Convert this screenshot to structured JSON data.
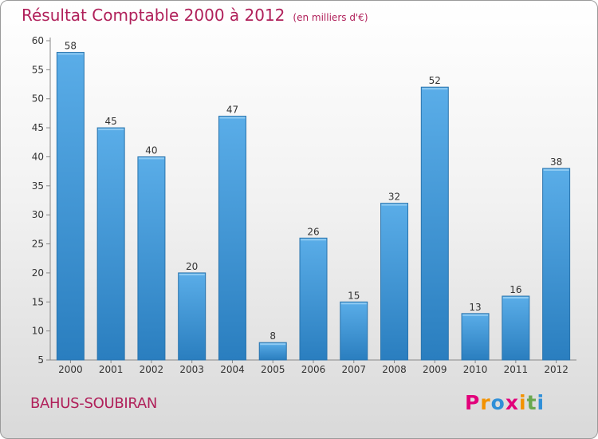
{
  "title": "Résultat Comptable 2000 à 2012",
  "subtitle": "(en milliers d'€)",
  "commune": "BAHUS-SOUBIRAN",
  "logo": {
    "letters": [
      "P",
      "r",
      "o",
      "x",
      "i",
      "t",
      "i"
    ],
    "colors": [
      "#e2007a",
      "#f39200",
      "#2f8fd8",
      "#e2007a",
      "#f39200",
      "#6aa84f",
      "#2f8fd8"
    ]
  },
  "colors": {
    "bar_light": "#5aade8",
    "bar_dark": "#2a7ebf",
    "title": "#b0205a"
  },
  "chart_data": {
    "type": "bar",
    "categories": [
      "2000",
      "2001",
      "2002",
      "2003",
      "2004",
      "2005",
      "2006",
      "2007",
      "2008",
      "2009",
      "2010",
      "2011",
      "2012"
    ],
    "values": [
      58,
      45,
      40,
      20,
      47,
      8,
      26,
      15,
      32,
      52,
      13,
      16,
      38
    ],
    "value_labels": [
      "58",
      "45",
      "40",
      "20",
      "47",
      "8",
      "26",
      "15",
      "32",
      "52",
      "13",
      "16",
      "38"
    ],
    "ylim": [
      5,
      60
    ],
    "yticks": [
      5,
      10,
      15,
      20,
      25,
      30,
      35,
      40,
      45,
      50,
      55,
      60
    ],
    "grid": false,
    "legend": "none"
  }
}
